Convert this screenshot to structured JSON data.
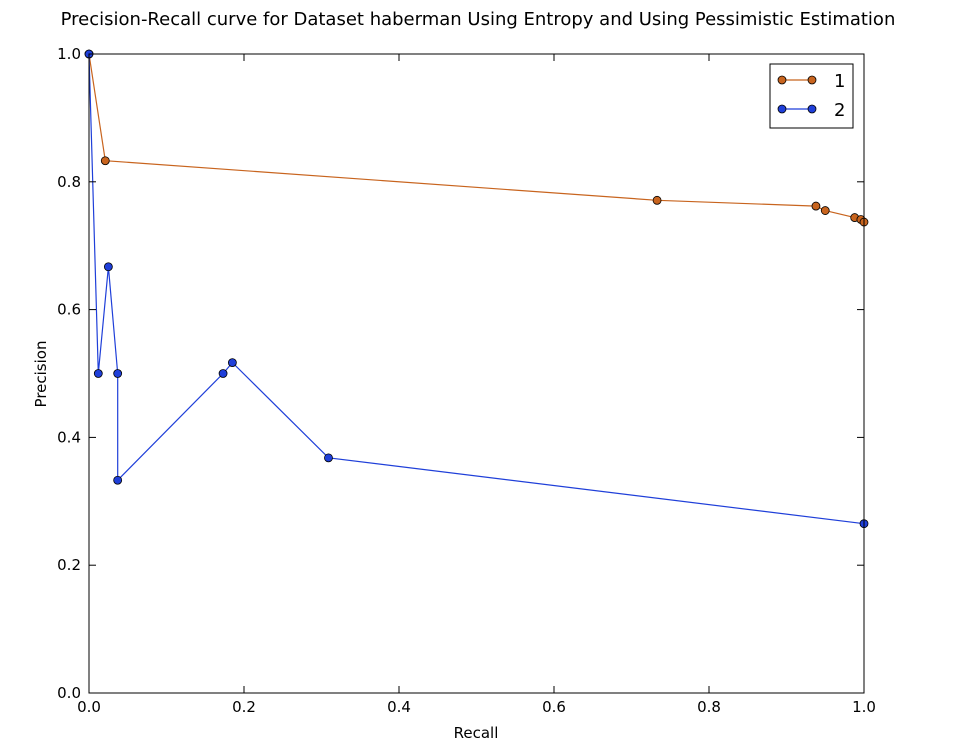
{
  "chart_data": {
    "type": "line",
    "title": "Precision-Recall curve for Dataset haberman Using Entropy and Using Pessimistic Estimation",
    "xlabel": "Recall",
    "ylabel": "Precision",
    "xlim": [
      0.0,
      1.0
    ],
    "ylim": [
      0.0,
      1.0
    ],
    "x_ticks": [
      "0.0",
      "0.2",
      "0.4",
      "0.6",
      "0.8",
      "1.0"
    ],
    "y_ticks": [
      "0.0",
      "0.2",
      "0.4",
      "0.6",
      "0.8",
      "1.0"
    ],
    "grid": false,
    "legend_position": "top-right",
    "series": [
      {
        "name": "1",
        "color": "#c8641e",
        "marker": "circle",
        "points": [
          [
            0.0,
            1.0
          ],
          [
            0.021,
            0.833
          ],
          [
            0.733,
            0.771
          ],
          [
            0.938,
            0.762
          ],
          [
            0.95,
            0.755
          ],
          [
            0.988,
            0.744
          ],
          [
            0.996,
            0.741
          ],
          [
            1.0,
            0.737
          ]
        ]
      },
      {
        "name": "2",
        "color": "#1f3fd9",
        "marker": "circle",
        "points": [
          [
            0.0,
            1.0
          ],
          [
            0.012,
            0.5
          ],
          [
            0.025,
            0.667
          ],
          [
            0.037,
            0.5
          ],
          [
            0.037,
            0.333
          ],
          [
            0.173,
            0.5
          ],
          [
            0.185,
            0.517
          ],
          [
            0.309,
            0.368
          ],
          [
            1.0,
            0.265
          ]
        ]
      }
    ]
  }
}
